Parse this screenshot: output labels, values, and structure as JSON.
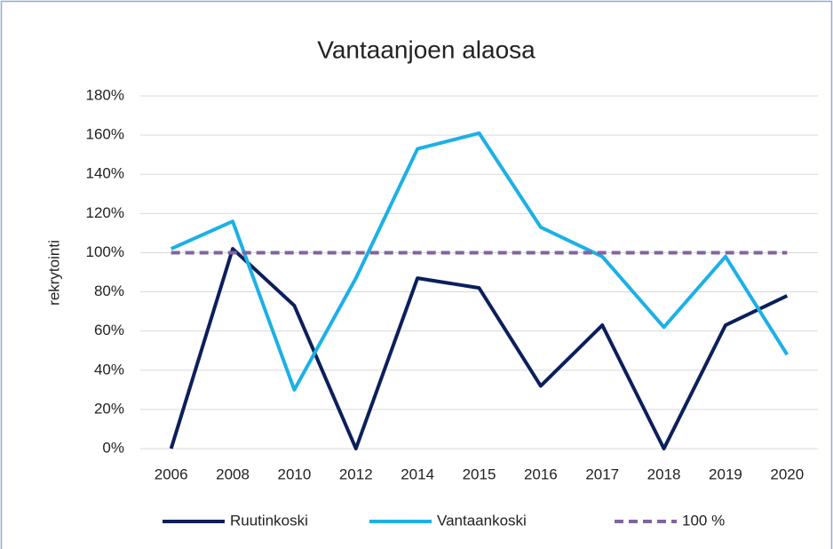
{
  "chart_data": {
    "type": "line",
    "title": "Vantaanjoen alaosa",
    "y_label": "rekrytointi",
    "categories": [
      "2006",
      "2008",
      "2010",
      "2012",
      "2014",
      "2015",
      "2016",
      "2017",
      "2018",
      "2019",
      "2020"
    ],
    "series": [
      {
        "name": "Ruutinkoski",
        "color": "#0c1f5c",
        "values": [
          0,
          102,
          73,
          0,
          87,
          82,
          32,
          63,
          0,
          63,
          78
        ]
      },
      {
        "name": "Vantaankoski",
        "color": "#1cb0e6",
        "values": [
          102,
          116,
          30,
          87,
          153,
          161,
          113,
          98,
          62,
          98,
          48
        ]
      },
      {
        "name": "100 %",
        "color": "#8064a2",
        "dashed": true,
        "values": [
          100,
          100,
          100,
          100,
          100,
          100,
          100,
          100,
          100,
          100,
          100
        ]
      }
    ],
    "ylim": [
      0,
      180
    ],
    "yticks": [
      {
        "value": 0,
        "label": "0%"
      },
      {
        "value": 20,
        "label": "20%"
      },
      {
        "value": 40,
        "label": "40%"
      },
      {
        "value": 60,
        "label": "60%"
      },
      {
        "value": 80,
        "label": "80%"
      },
      {
        "value": 100,
        "label": "100%"
      },
      {
        "value": 120,
        "label": "120%"
      },
      {
        "value": 140,
        "label": "140%"
      },
      {
        "value": 160,
        "label": "160%"
      },
      {
        "value": 180,
        "label": "180%"
      }
    ],
    "grid": true,
    "legend": "bottom"
  }
}
